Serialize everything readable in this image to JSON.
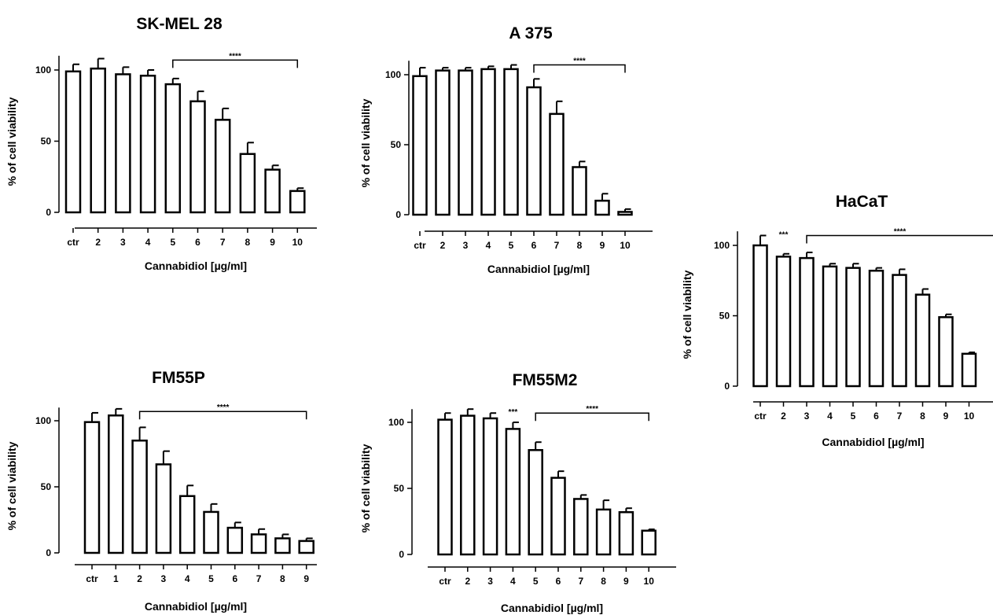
{
  "chart_data": [
    {
      "type": "bar",
      "title": "SK-MEL 28",
      "xlabel": "Cannabidiol [µg/ml]",
      "ylabel": "% of cell viability",
      "ylim": [
        0,
        110
      ],
      "yticks": [
        "0",
        "50",
        "100"
      ],
      "categories": [
        "ctr",
        "2",
        "3",
        "4",
        "5",
        "6",
        "7",
        "8",
        "9",
        "10"
      ],
      "values": [
        99,
        101,
        97,
        96,
        90,
        78,
        65,
        41,
        30,
        15
      ],
      "error": [
        5,
        7,
        5,
        4,
        4,
        7,
        8,
        8,
        3,
        2
      ],
      "significance": [
        {
          "label": "****",
          "from": "5",
          "to": "10"
        }
      ]
    },
    {
      "type": "bar",
      "title": "A 375",
      "xlabel": "Cannabidiol [µg/ml]",
      "ylabel": "% of cell viability",
      "ylim": [
        0,
        110
      ],
      "yticks": [
        "0",
        "50",
        "100"
      ],
      "categories": [
        "ctr",
        "2",
        "3",
        "4",
        "5",
        "6",
        "7",
        "8",
        "9",
        "10"
      ],
      "values": [
        99,
        103,
        103,
        104,
        104,
        91,
        72,
        34,
        10,
        2
      ],
      "error": [
        6,
        2,
        2,
        2,
        3,
        6,
        9,
        4,
        5,
        2
      ],
      "significance": [
        {
          "label": "****",
          "from": "6",
          "to": "10"
        }
      ]
    },
    {
      "type": "bar",
      "title": "HaCaT",
      "xlabel": "Cannabidiol [µg/ml]",
      "ylabel": "% of cell viability",
      "ylim": [
        0,
        110
      ],
      "yticks": [
        "0",
        "50",
        "100"
      ],
      "categories": [
        "ctr",
        "2",
        "3",
        "4",
        "5",
        "6",
        "7",
        "8",
        "9",
        "10"
      ],
      "values": [
        100,
        92,
        91,
        85,
        84,
        82,
        79,
        65,
        49,
        23
      ],
      "error": [
        7,
        2,
        4,
        2,
        3,
        2,
        4,
        4,
        2,
        1
      ],
      "significance": [
        {
          "label": "***",
          "from": "2",
          "to": "2"
        },
        {
          "label": "****",
          "from": "3",
          "to": "10"
        }
      ]
    },
    {
      "type": "bar",
      "title": "FM55P",
      "xlabel": "Cannabidiol [µg/ml]",
      "ylabel": "% of cell viability",
      "ylim": [
        0,
        110
      ],
      "yticks": [
        "0",
        "50",
        "100"
      ],
      "categories": [
        "ctr",
        "1",
        "2",
        "3",
        "4",
        "5",
        "6",
        "7",
        "8",
        "9"
      ],
      "values": [
        99,
        104,
        85,
        67,
        43,
        31,
        19,
        14,
        11,
        9
      ],
      "error": [
        7,
        5,
        10,
        10,
        8,
        6,
        4,
        4,
        3,
        2
      ],
      "significance": [
        {
          "label": "****",
          "from": "2",
          "to": "9"
        }
      ]
    },
    {
      "type": "bar",
      "title": "FM55M2",
      "xlabel": "Cannabidiol [µg/ml]",
      "ylabel": "% of cell viability",
      "ylim": [
        0,
        110
      ],
      "yticks": [
        "0",
        "50",
        "100"
      ],
      "categories": [
        "ctr",
        "2",
        "3",
        "4",
        "5",
        "6",
        "7",
        "8",
        "9",
        "10"
      ],
      "values": [
        102,
        105,
        103,
        95,
        79,
        58,
        42,
        34,
        32,
        18
      ],
      "error": [
        5,
        5,
        4,
        5,
        6,
        5,
        3,
        7,
        3,
        1
      ],
      "significance": [
        {
          "label": "***",
          "from": "4",
          "to": "4"
        },
        {
          "label": "****",
          "from": "5",
          "to": "10"
        }
      ]
    }
  ]
}
